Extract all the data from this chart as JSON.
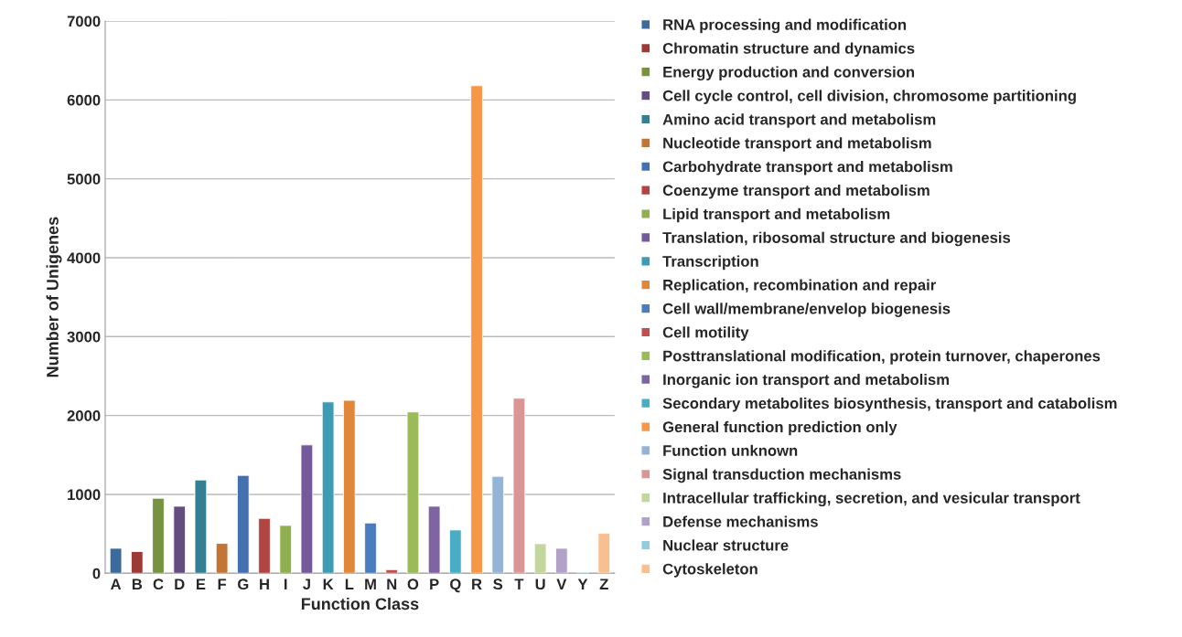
{
  "chart_data": {
    "type": "bar",
    "xlabel": "Function Class",
    "ylabel": "Number of Unigenes",
    "categories": [
      "A",
      "B",
      "C",
      "D",
      "E",
      "F",
      "G",
      "H",
      "I",
      "J",
      "K",
      "L",
      "M",
      "N",
      "O",
      "P",
      "Q",
      "R",
      "S",
      "T",
      "U",
      "V",
      "Y",
      "Z"
    ],
    "series": [
      {
        "name": "RNA processing and modification",
        "color": "#3d6a9c",
        "values": [
          317,
          null,
          null,
          null,
          null,
          null,
          null,
          null,
          null,
          null,
          null,
          null,
          null,
          null,
          null,
          null,
          null,
          null,
          null,
          null,
          null,
          null,
          null,
          null
        ]
      },
      {
        "name": "Chromatin structure and dynamics",
        "color": "#9b3b38",
        "values": [
          null,
          276,
          null,
          null,
          null,
          null,
          null,
          null,
          null,
          null,
          null,
          null,
          null,
          null,
          null,
          null,
          null,
          null,
          null,
          null,
          null,
          null,
          null,
          null
        ]
      },
      {
        "name": "Energy production and conversion",
        "color": "#779342",
        "values": [
          null,
          null,
          951,
          null,
          null,
          null,
          null,
          null,
          null,
          null,
          null,
          null,
          null,
          null,
          null,
          null,
          null,
          null,
          null,
          null,
          null,
          null,
          null,
          null
        ]
      },
      {
        "name": "Cell cycle control, cell division, chromosome partitioning",
        "color": "#634d81",
        "values": [
          null,
          null,
          null,
          850,
          null,
          null,
          null,
          null,
          null,
          null,
          null,
          null,
          null,
          null,
          null,
          null,
          null,
          null,
          null,
          null,
          null,
          null,
          null,
          null
        ]
      },
      {
        "name": "Amino acid transport and metabolism",
        "color": "#357f93",
        "values": [
          null,
          null,
          null,
          null,
          1183,
          null,
          null,
          null,
          null,
          null,
          null,
          null,
          null,
          null,
          null,
          null,
          null,
          null,
          null,
          null,
          null,
          null,
          null,
          null
        ]
      },
      {
        "name": "Nucleotide transport and metabolism",
        "color": "#c27535",
        "values": [
          null,
          null,
          null,
          null,
          null,
          379,
          null,
          null,
          null,
          null,
          null,
          null,
          null,
          null,
          null,
          null,
          null,
          null,
          null,
          null,
          null,
          null,
          null,
          null
        ]
      },
      {
        "name": "Carbohydrate transport and metabolism",
        "color": "#4470b0",
        "values": [
          null,
          null,
          null,
          null,
          null,
          null,
          1241,
          null,
          null,
          null,
          null,
          null,
          null,
          null,
          null,
          null,
          null,
          null,
          null,
          null,
          null,
          null,
          null,
          null
        ]
      },
      {
        "name": "Coenzyme transport and metabolism",
        "color": "#b04541",
        "values": [
          null,
          null,
          null,
          null,
          null,
          null,
          null,
          696,
          null,
          null,
          null,
          null,
          null,
          null,
          null,
          null,
          null,
          null,
          null,
          null,
          null,
          null,
          null,
          null
        ]
      },
      {
        "name": "Lipid transport and metabolism",
        "color": "#8fb050",
        "values": [
          null,
          null,
          null,
          null,
          null,
          null,
          null,
          null,
          607,
          null,
          null,
          null,
          null,
          null,
          null,
          null,
          null,
          null,
          null,
          null,
          null,
          null,
          null,
          null
        ]
      },
      {
        "name": "Translation, ribosomal structure and biogenesis",
        "color": "#735a9a",
        "values": [
          null,
          null,
          null,
          null,
          null,
          null,
          null,
          null,
          null,
          1627,
          null,
          null,
          null,
          null,
          null,
          null,
          null,
          null,
          null,
          null,
          null,
          null,
          null,
          null
        ]
      },
      {
        "name": "Transcription",
        "color": "#3d9bb5",
        "values": [
          null,
          null,
          null,
          null,
          null,
          null,
          null,
          null,
          null,
          null,
          2172,
          null,
          null,
          null,
          null,
          null,
          null,
          null,
          null,
          null,
          null,
          null,
          null,
          null
        ]
      },
      {
        "name": "Replication, recombination and repair",
        "color": "#e0873a",
        "values": [
          null,
          null,
          null,
          null,
          null,
          null,
          null,
          null,
          null,
          null,
          null,
          2192,
          null,
          null,
          null,
          null,
          null,
          null,
          null,
          null,
          null,
          null,
          null,
          null
        ]
      },
      {
        "name": "Cell wall/membrane/envelop biogenesis",
        "color": "#4a7dbf",
        "values": [
          null,
          null,
          null,
          null,
          null,
          null,
          null,
          null,
          null,
          null,
          null,
          null,
          638,
          null,
          null,
          null,
          null,
          null,
          null,
          null,
          null,
          null,
          null,
          null
        ]
      },
      {
        "name": "Cell motility",
        "color": "#c0504d",
        "values": [
          null,
          null,
          null,
          null,
          null,
          null,
          null,
          null,
          null,
          null,
          null,
          null,
          null,
          46,
          null,
          null,
          null,
          null,
          null,
          null,
          null,
          null,
          null,
          null
        ]
      },
      {
        "name": "Posttranslational modification, protein turnover, chaperones",
        "color": "#9bbb59",
        "values": [
          null,
          null,
          null,
          null,
          null,
          null,
          null,
          null,
          null,
          null,
          null,
          null,
          null,
          null,
          2045,
          null,
          null,
          null,
          null,
          null,
          null,
          null,
          null,
          null
        ]
      },
      {
        "name": "Inorganic ion transport and metabolism",
        "color": "#8064a2",
        "values": [
          null,
          null,
          null,
          null,
          null,
          null,
          null,
          null,
          null,
          null,
          null,
          null,
          null,
          null,
          null,
          850,
          null,
          null,
          null,
          null,
          null,
          null,
          null,
          null
        ]
      },
      {
        "name": "Secondary metabolites biosynthesis, transport and catabolism",
        "color": "#4bacc6",
        "values": [
          null,
          null,
          null,
          null,
          null,
          null,
          null,
          null,
          null,
          null,
          null,
          null,
          null,
          null,
          null,
          null,
          549,
          null,
          null,
          null,
          null,
          null,
          null,
          null
        ]
      },
      {
        "name": "General function prediction only",
        "color": "#f79646",
        "values": [
          null,
          null,
          null,
          null,
          null,
          null,
          null,
          null,
          null,
          null,
          null,
          null,
          null,
          null,
          null,
          null,
          null,
          6180,
          null,
          null,
          null,
          null,
          null,
          null
        ]
      },
      {
        "name": "Function unknown",
        "color": "#95b3d7",
        "values": [
          null,
          null,
          null,
          null,
          null,
          null,
          null,
          null,
          null,
          null,
          null,
          null,
          null,
          null,
          null,
          null,
          null,
          null,
          1229,
          null,
          null,
          null,
          null,
          null
        ]
      },
      {
        "name": "Signal transduction mechanisms",
        "color": "#d99694",
        "values": [
          null,
          null,
          null,
          null,
          null,
          null,
          null,
          null,
          null,
          null,
          null,
          null,
          null,
          null,
          null,
          null,
          null,
          null,
          null,
          2219,
          null,
          null,
          null,
          null
        ]
      },
      {
        "name": "Intracellular trafficking, secretion, and vesicular transport",
        "color": "#c3d69b",
        "values": [
          null,
          null,
          null,
          null,
          null,
          null,
          null,
          null,
          null,
          null,
          null,
          null,
          null,
          null,
          null,
          null,
          null,
          null,
          null,
          null,
          375,
          null,
          null,
          null
        ]
      },
      {
        "name": "Defense mechanisms",
        "color": "#b3a2c7",
        "values": [
          null,
          null,
          null,
          null,
          null,
          null,
          null,
          null,
          null,
          null,
          null,
          null,
          null,
          null,
          null,
          null,
          null,
          null,
          null,
          null,
          null,
          317,
          null,
          null
        ]
      },
      {
        "name": "Nuclear structure",
        "color": "#93cddd",
        "values": [
          null,
          null,
          null,
          null,
          null,
          null,
          null,
          null,
          null,
          null,
          null,
          null,
          null,
          null,
          null,
          null,
          null,
          null,
          null,
          null,
          null,
          null,
          15,
          null
        ]
      },
      {
        "name": "Cytoskeleton",
        "color": "#fabf8f",
        "values": [
          null,
          null,
          null,
          null,
          null,
          null,
          null,
          null,
          null,
          null,
          null,
          null,
          null,
          null,
          null,
          null,
          null,
          null,
          null,
          null,
          null,
          null,
          null,
          506
        ]
      }
    ],
    "ylim": [
      0,
      7000
    ],
    "yticks": [
      0,
      1000,
      2000,
      3000,
      4000,
      5000,
      6000,
      7000
    ],
    "grid": "y",
    "legend": "right"
  }
}
